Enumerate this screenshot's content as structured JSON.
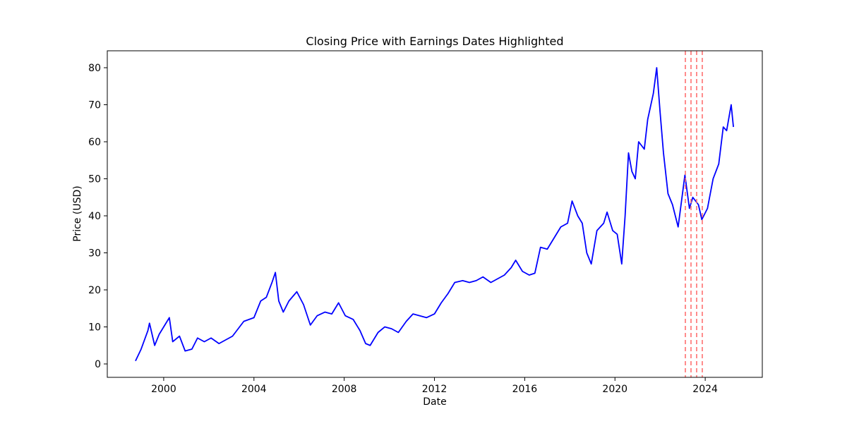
{
  "chart_data": {
    "type": "line",
    "title": "Closing Price with Earnings Dates Highlighted",
    "x_label": "Date",
    "y_label": "Price (USD)",
    "color": "#0000ff",
    "x": [
      1998.75,
      1999.0,
      1999.3,
      1999.37,
      1999.6,
      1999.8,
      2000.25,
      2000.4,
      2000.7,
      2000.95,
      2001.25,
      2001.5,
      2001.8,
      2002.1,
      2002.45,
      2002.75,
      2003.05,
      2003.55,
      2004.0,
      2004.3,
      2004.55,
      2004.8,
      2004.95,
      2005.1,
      2005.3,
      2005.55,
      2005.9,
      2006.2,
      2006.5,
      2006.8,
      2007.15,
      2007.45,
      2007.75,
      2008.05,
      2008.4,
      2008.7,
      2008.95,
      2009.15,
      2009.5,
      2009.8,
      2010.1,
      2010.4,
      2010.75,
      2011.05,
      2011.35,
      2011.65,
      2012.0,
      2012.3,
      2012.6,
      2012.9,
      2013.25,
      2013.55,
      2013.85,
      2014.15,
      2014.5,
      2014.8,
      2015.1,
      2015.4,
      2015.6,
      2015.9,
      2016.2,
      2016.45,
      2016.7,
      2017.0,
      2017.3,
      2017.6,
      2017.9,
      2018.1,
      2018.35,
      2018.55,
      2018.75,
      2018.95,
      2019.2,
      2019.5,
      2019.65,
      2019.9,
      2020.1,
      2020.3,
      2020.45,
      2020.6,
      2020.75,
      2020.9,
      2021.05,
      2021.3,
      2021.45,
      2021.7,
      2021.85,
      2022.0,
      2022.15,
      2022.35,
      2022.55,
      2022.8,
      2022.95,
      2023.1,
      2023.3,
      2023.45,
      2023.7,
      2023.85,
      2024.1,
      2024.35,
      2024.6,
      2024.8,
      2024.95,
      2025.15,
      2025.25
    ],
    "values": [
      0.8,
      4,
      9,
      11,
      5,
      8,
      12.5,
      6,
      7.5,
      3.5,
      4,
      7,
      6,
      7,
      5.5,
      6.5,
      7.5,
      11.5,
      12.5,
      17,
      18,
      22,
      24.7,
      17,
      14,
      17,
      19.5,
      16,
      10.5,
      13,
      14,
      13.5,
      16.5,
      13,
      12,
      9,
      5.5,
      5,
      8.5,
      10,
      9.5,
      8.5,
      11.5,
      13.5,
      13,
      12.5,
      13.5,
      16.5,
      19,
      22,
      22.5,
      22,
      22.5,
      23.5,
      22,
      23,
      24,
      26,
      28,
      25,
      24,
      24.5,
      31.5,
      31,
      34,
      37,
      38,
      44,
      40,
      38,
      30,
      27,
      36,
      38,
      41,
      36,
      35,
      27,
      40,
      57,
      52,
      50,
      60,
      58,
      66,
      73,
      80,
      68,
      57,
      46,
      43,
      37,
      44,
      51,
      42,
      45,
      43,
      39,
      42,
      50,
      54,
      64,
      63,
      70,
      64
    ],
    "earnings_dates": {
      "x": [
        2023.12,
        2023.37,
        2023.62,
        2023.87
      ],
      "color": "#ff6666"
    },
    "xlim": [
      1997.5,
      2026.53
    ],
    "ylim": [
      -3.62,
      84.57
    ],
    "xticks": [
      2000,
      2004,
      2008,
      2012,
      2016,
      2020,
      2024
    ],
    "yticks": [
      0,
      10,
      20,
      30,
      40,
      50,
      60,
      70,
      80
    ]
  }
}
